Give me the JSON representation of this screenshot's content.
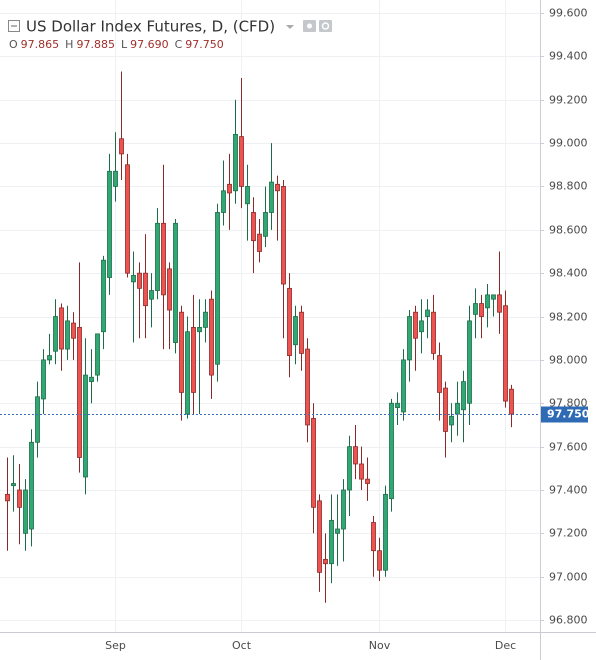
{
  "chart_data": {
    "type": "candlestick",
    "title": "US Dollar Index Futures, D, (CFD)",
    "ohlc_header": [
      {
        "key": "O",
        "value": "97.865"
      },
      {
        "key": "H",
        "value": "97.885"
      },
      {
        "key": "L",
        "value": "97.690"
      },
      {
        "key": "C",
        "value": "97.750"
      }
    ],
    "categories": [
      null,
      null,
      null,
      null,
      null,
      null,
      null,
      null,
      null,
      null,
      null,
      null,
      null,
      null,
      null,
      null,
      null,
      null,
      "Sep",
      null,
      null,
      null,
      null,
      null,
      null,
      null,
      null,
      null,
      null,
      null,
      null,
      null,
      null,
      null,
      null,
      null,
      null,
      null,
      null,
      "Oct",
      null,
      null,
      null,
      null,
      null,
      null,
      null,
      null,
      null,
      null,
      null,
      null,
      null,
      null,
      null,
      null,
      null,
      null,
      null,
      null,
      null,
      null,
      "Nov",
      null,
      null,
      null,
      null,
      null,
      null,
      null,
      null,
      null,
      null,
      null,
      null,
      null,
      null,
      null,
      null,
      null,
      null,
      null,
      null,
      "Dec",
      null
    ],
    "open": [
      97.38,
      97.42,
      97.4,
      97.2,
      97.22,
      97.62,
      97.82,
      98.0,
      98.04,
      98.24,
      98.05,
      98.17,
      98.15,
      97.46,
      97.9,
      97.93,
      98.13,
      98.38,
      98.8,
      99.02,
      98.9,
      98.36,
      98.4,
      98.4,
      98.28,
      98.32,
      98.63,
      98.42,
      98.08,
      98.22,
      97.75,
      98.15,
      98.13,
      98.15,
      98.28,
      97.98,
      98.68,
      98.81,
      98.78,
      99.03,
      98.72,
      98.68,
      98.58,
      98.57,
      98.68,
      98.81,
      98.8,
      98.33,
      98.07,
      98.22,
      98.05,
      97.73,
      97.35,
      97.08,
      97.06,
      97.2,
      97.22,
      97.4,
      97.6,
      97.52,
      97.45,
      97.25,
      97.12,
      97.03,
      97.36,
      97.78,
      97.76,
      98.0,
      98.22,
      98.13,
      98.2,
      98.22,
      98.02,
      97.87,
      97.7,
      97.75,
      97.77,
      97.8,
      98.21,
      98.26,
      98.24,
      98.28,
      98.3,
      98.25,
      97.865
    ],
    "high": [
      97.55,
      97.56,
      97.52,
      97.45,
      97.68,
      97.9,
      98.05,
      98.12,
      98.28,
      98.26,
      98.25,
      98.22,
      98.45,
      98.1,
      98.05,
      98.12,
      98.48,
      98.95,
      99.05,
      99.33,
      98.95,
      98.5,
      98.45,
      98.58,
      98.4,
      98.7,
      98.9,
      98.45,
      98.65,
      98.25,
      98.2,
      98.3,
      98.28,
      98.28,
      98.32,
      98.72,
      98.92,
      98.95,
      99.2,
      99.3,
      98.9,
      98.75,
      98.65,
      98.8,
      99.0,
      98.85,
      98.83,
      98.4,
      98.25,
      98.25,
      98.1,
      97.8,
      97.38,
      97.2,
      97.38,
      97.38,
      97.45,
      97.65,
      97.7,
      97.6,
      97.55,
      97.28,
      97.18,
      97.42,
      97.82,
      97.85,
      98.05,
      98.23,
      98.25,
      98.28,
      98.28,
      98.3,
      98.08,
      97.9,
      97.8,
      97.9,
      97.95,
      98.25,
      98.33,
      98.3,
      98.35,
      98.3,
      98.5,
      98.32,
      97.885
    ],
    "low": [
      97.12,
      97.3,
      97.15,
      97.12,
      97.14,
      97.55,
      97.75,
      97.98,
      97.98,
      97.95,
      98.0,
      98.0,
      97.48,
      97.38,
      97.8,
      97.9,
      98.05,
      98.3,
      98.73,
      98.83,
      98.38,
      98.08,
      98.1,
      98.1,
      98.15,
      98.28,
      98.05,
      98.05,
      98.03,
      97.72,
      97.73,
      97.75,
      97.75,
      98.08,
      97.82,
      97.9,
      98.62,
      98.6,
      98.72,
      98.7,
      98.55,
      98.4,
      98.45,
      98.52,
      98.6,
      98.55,
      98.1,
      97.92,
      97.98,
      97.95,
      97.62,
      97.2,
      96.93,
      96.88,
      96.97,
      97.05,
      97.07,
      97.28,
      97.45,
      97.4,
      97.35,
      97.0,
      96.98,
      97.0,
      97.3,
      97.7,
      97.72,
      97.9,
      97.95,
      98.03,
      98.1,
      98.0,
      97.72,
      97.55,
      97.62,
      97.65,
      97.62,
      97.7,
      98.1,
      98.1,
      98.15,
      98.2,
      98.12,
      97.78,
      97.69
    ],
    "close": [
      97.35,
      97.43,
      97.32,
      97.4,
      97.62,
      97.83,
      98.0,
      98.02,
      98.2,
      98.05,
      98.18,
      98.1,
      97.55,
      97.93,
      97.92,
      98.12,
      98.46,
      98.87,
      98.87,
      98.95,
      98.4,
      98.39,
      98.33,
      98.25,
      98.32,
      98.63,
      98.3,
      98.23,
      98.63,
      97.85,
      98.13,
      97.85,
      98.15,
      98.22,
      97.93,
      98.68,
      98.78,
      98.77,
      99.04,
      98.8,
      98.8,
      98.55,
      98.5,
      98.68,
      98.82,
      98.78,
      98.35,
      98.02,
      98.2,
      98.03,
      97.7,
      97.32,
      97.02,
      97.06,
      97.26,
      97.22,
      97.4,
      97.6,
      97.52,
      97.45,
      97.43,
      97.12,
      97.03,
      97.38,
      97.8,
      97.8,
      98.0,
      98.2,
      98.1,
      98.18,
      98.23,
      98.03,
      97.85,
      97.67,
      97.74,
      97.8,
      97.9,
      98.18,
      98.26,
      98.2,
      98.3,
      98.3,
      98.22,
      97.81,
      97.75
    ],
    "up_color": "#2fa874",
    "down_color": "#ef5350",
    "ylim": [
      96.745,
      99.66
    ],
    "yticks": [
      {
        "value": 96.8,
        "label": "96.800"
      },
      {
        "value": 97.0,
        "label": "97.000"
      },
      {
        "value": 97.2,
        "label": "97.200"
      },
      {
        "value": 97.4,
        "label": "97.400"
      },
      {
        "value": 97.6,
        "label": "97.600"
      },
      {
        "value": 97.8,
        "label": "97.800"
      },
      {
        "value": 98.0,
        "label": "98.000"
      },
      {
        "value": 98.2,
        "label": "98.200"
      },
      {
        "value": 98.4,
        "label": "98.400"
      },
      {
        "value": 98.6,
        "label": "98.600"
      },
      {
        "value": 98.8,
        "label": "98.800"
      },
      {
        "value": 99.0,
        "label": "99.000"
      },
      {
        "value": 99.2,
        "label": "99.200"
      },
      {
        "value": 99.4,
        "label": "99.400"
      },
      {
        "value": 99.6,
        "label": "99.600"
      }
    ],
    "last_price": {
      "value": 97.75,
      "label": "97.750"
    },
    "grid": true
  }
}
